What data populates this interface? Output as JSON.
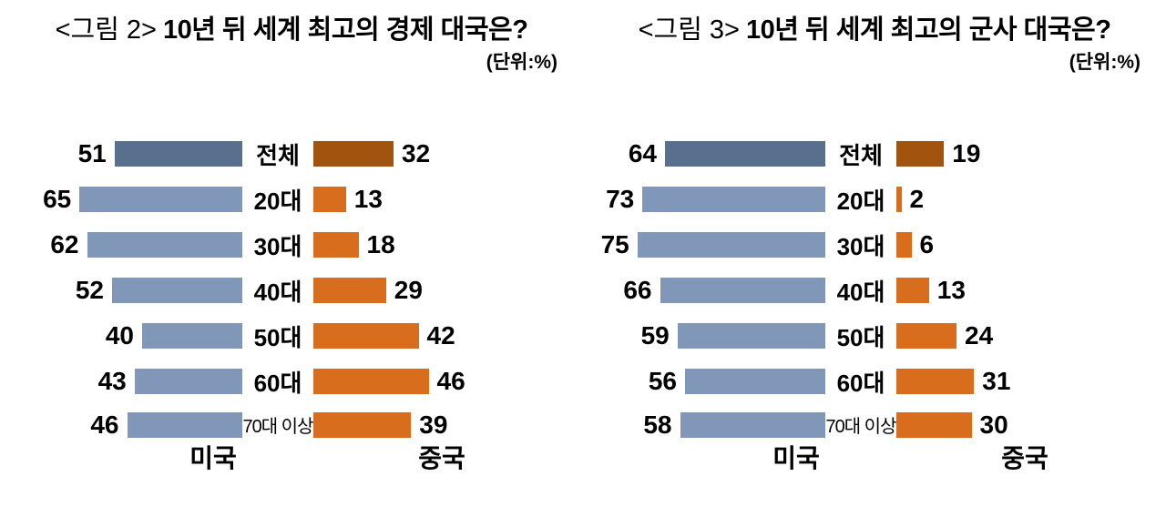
{
  "palette": {
    "us_bar": "#8097ba",
    "us_bar_total": "#586f8e",
    "china_bar": "#d86d1e",
    "china_bar_total": "#a2540f",
    "text": "#000000",
    "background": "#ffffff"
  },
  "chart_data": [
    {
      "type": "bar",
      "orientation": "horizontal-diverging",
      "title_prefix": "<그림 2>",
      "title": "10년 뒤 세계 최고의 경제 대국은?",
      "unit_label": "(단위:%)",
      "categories": [
        "전체",
        "20대",
        "30대",
        "40대",
        "50대",
        "60대",
        "70대 이상"
      ],
      "series": [
        {
          "name": "미국",
          "side": "left",
          "values": [
            51,
            65,
            62,
            52,
            40,
            43,
            46
          ]
        },
        {
          "name": "중국",
          "side": "right",
          "values": [
            32,
            13,
            18,
            29,
            42,
            46,
            39
          ]
        }
      ],
      "value_range": [
        0,
        100
      ],
      "highlight_category": "전체",
      "legend_position": "bottom",
      "grid": false
    },
    {
      "type": "bar",
      "orientation": "horizontal-diverging",
      "title_prefix": "<그림 3>",
      "title": "10년 뒤 세계 최고의 군사 대국은?",
      "unit_label": "(단위:%)",
      "categories": [
        "전체",
        "20대",
        "30대",
        "40대",
        "50대",
        "60대",
        "70대 이상"
      ],
      "series": [
        {
          "name": "미국",
          "side": "left",
          "values": [
            64,
            73,
            75,
            66,
            59,
            56,
            58
          ]
        },
        {
          "name": "중국",
          "side": "right",
          "values": [
            19,
            2,
            6,
            13,
            24,
            31,
            30
          ]
        }
      ],
      "value_range": [
        0,
        100
      ],
      "highlight_category": "전체",
      "legend_position": "bottom",
      "grid": false
    }
  ]
}
